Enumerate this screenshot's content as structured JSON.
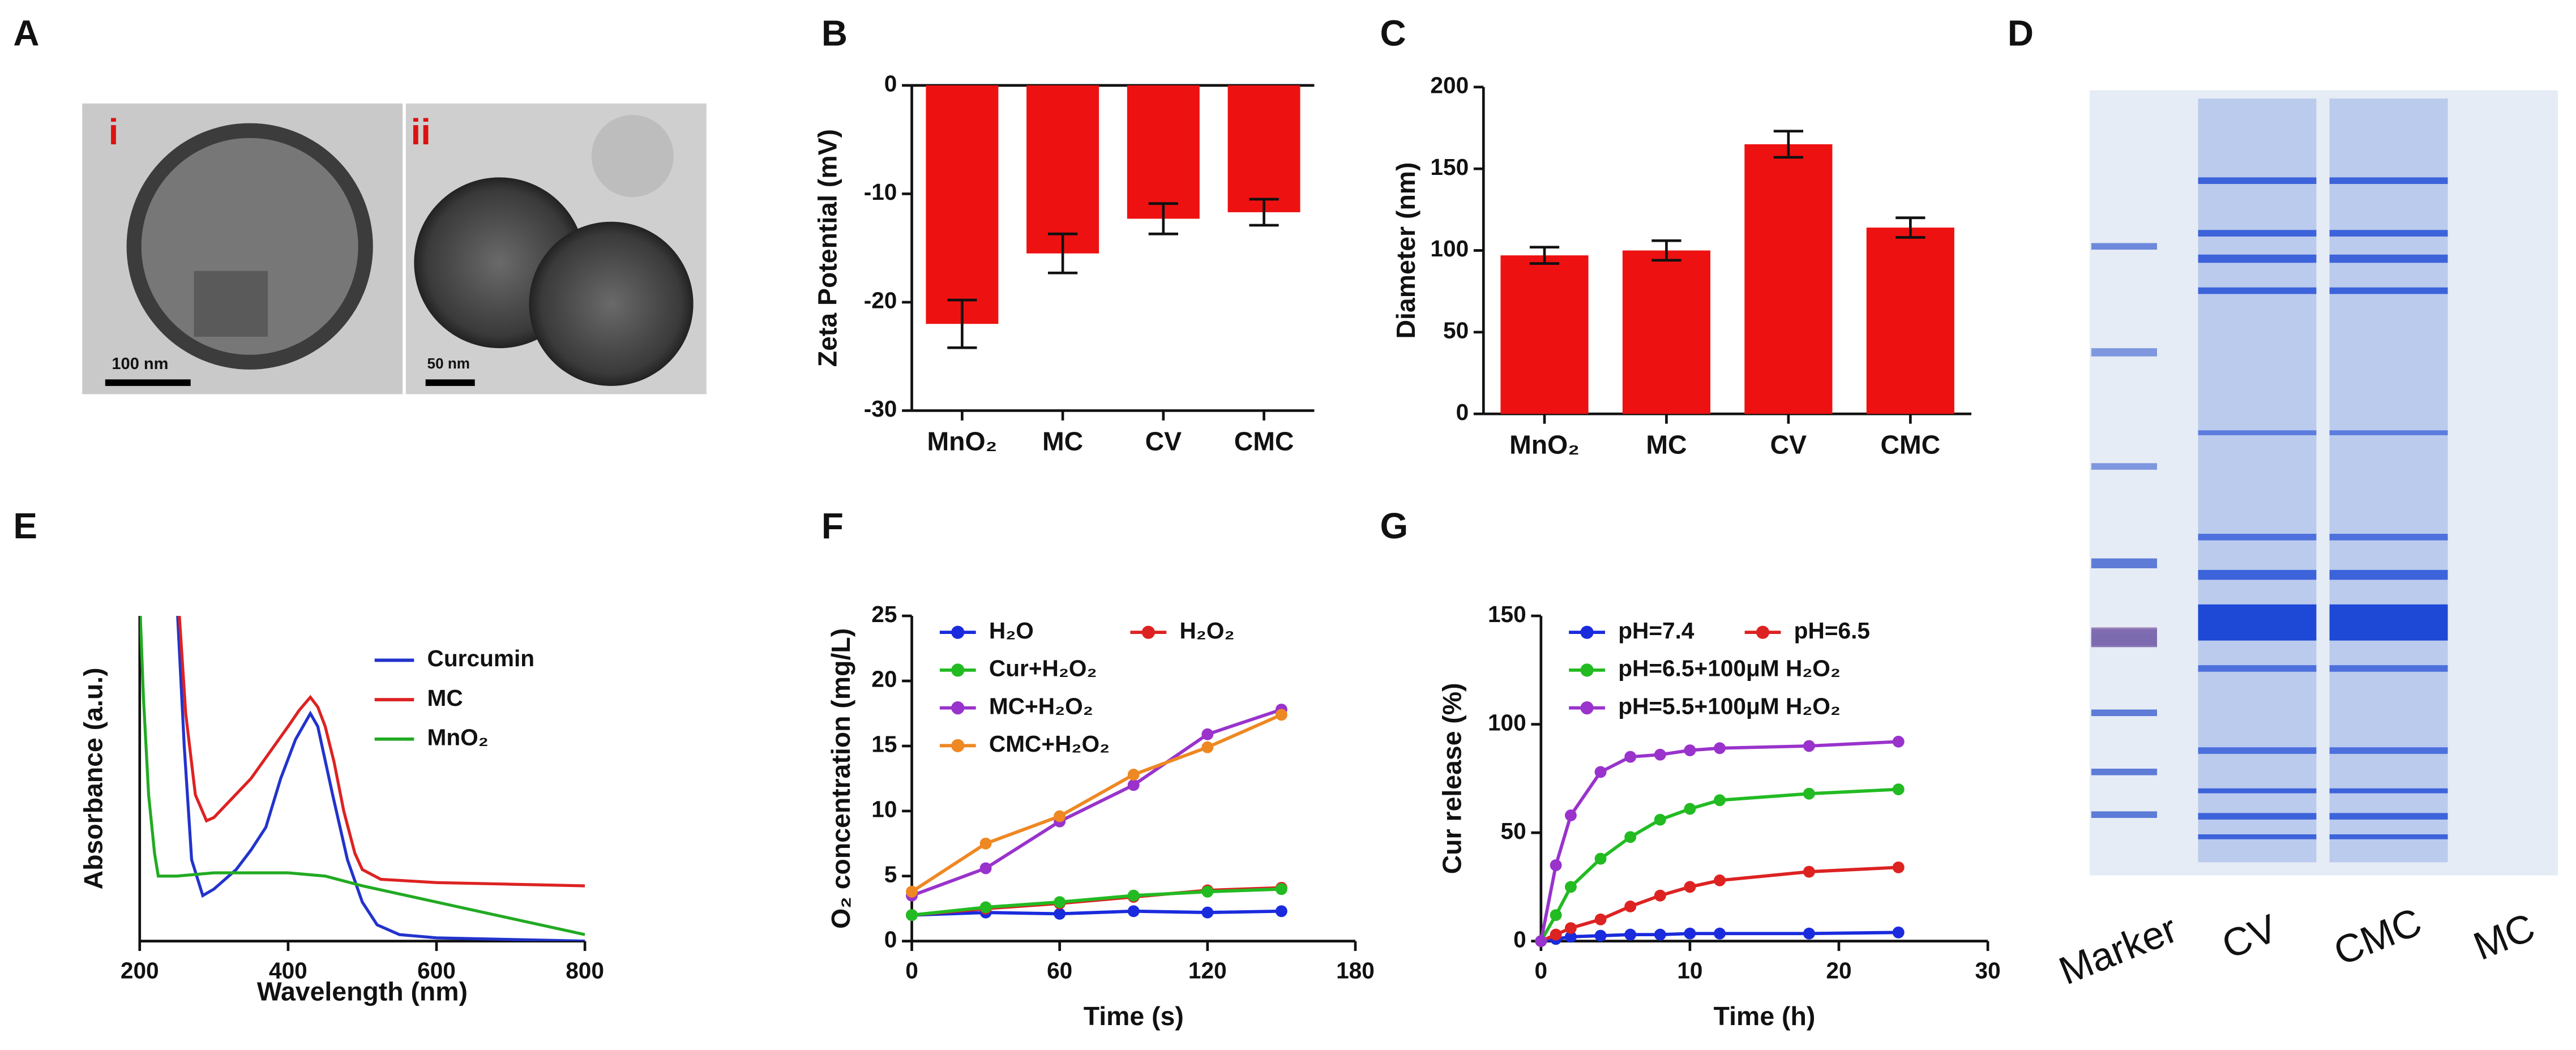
{
  "panel_a": {
    "panel": "A",
    "insets": [
      "i",
      "ii"
    ],
    "scale_bars": [
      "100 nm",
      "50 nm"
    ]
  },
  "gel": {
    "panel": "D",
    "lanes": [
      "Marker",
      "CV",
      "CMC",
      "MC"
    ]
  },
  "chart_data": [
    {
      "type": "bar",
      "panel": "B",
      "ylabel": "Zeta Potential (mV)",
      "categories": [
        "MnO₂",
        "MC",
        "CV",
        "CMC"
      ],
      "values": [
        -22,
        -15.5,
        -12.3,
        -11.7
      ],
      "errors": [
        2.2,
        1.8,
        1.4,
        1.2
      ],
      "color": "#ee1111",
      "ylim": [
        -30,
        0
      ],
      "yticks": [
        -30,
        -20,
        -10,
        0
      ]
    },
    {
      "type": "bar",
      "panel": "C",
      "ylabel": "Diameter (nm)",
      "categories": [
        "MnO₂",
        "MC",
        "CV",
        "CMC"
      ],
      "values": [
        97,
        100,
        165,
        114
      ],
      "errors": [
        5,
        6,
        8,
        6
      ],
      "color": "#ee1111",
      "ylim": [
        0,
        200
      ],
      "yticks": [
        0,
        50,
        100,
        150,
        200
      ]
    },
    {
      "type": "line",
      "panel": "E",
      "xlabel": "Wavelength (nm)",
      "ylabel": "Absorbance (a.u.)",
      "xlim": [
        200,
        800
      ],
      "xticks": [
        200,
        400,
        600,
        800
      ],
      "ylim": [
        0,
        1
      ],
      "markers": false,
      "series": [
        {
          "name": "Curcumin",
          "color": "#2233cc",
          "x": [
            250,
            260,
            270,
            285,
            300,
            330,
            350,
            370,
            390,
            410,
            430,
            440,
            460,
            480,
            500,
            520,
            550,
            600,
            700,
            800
          ],
          "values": [
            1.05,
            0.6,
            0.25,
            0.14,
            0.16,
            0.22,
            0.28,
            0.35,
            0.5,
            0.62,
            0.7,
            0.66,
            0.45,
            0.25,
            0.12,
            0.05,
            0.02,
            0.01,
            0.005,
            0
          ]
        },
        {
          "name": "MC",
          "color": "#dd2222",
          "x": [
            252,
            262,
            275,
            290,
            300,
            325,
            350,
            375,
            400,
            415,
            430,
            440,
            450,
            462,
            475,
            490,
            500,
            525,
            600,
            700,
            800
          ],
          "values": [
            1.05,
            0.7,
            0.45,
            0.37,
            0.38,
            0.44,
            0.5,
            0.58,
            0.66,
            0.71,
            0.75,
            0.72,
            0.66,
            0.55,
            0.4,
            0.27,
            0.22,
            0.19,
            0.18,
            0.175,
            0.17
          ]
        },
        {
          "name": "MnO₂",
          "color": "#22aa22",
          "x": [
            200,
            205,
            212,
            220,
            225,
            250,
            300,
            400,
            450,
            500,
            600,
            700,
            800
          ],
          "values": [
            1.05,
            0.75,
            0.45,
            0.27,
            0.2,
            0.2,
            0.21,
            0.21,
            0.2,
            0.17,
            0.12,
            0.07,
            0.02
          ]
        }
      ]
    },
    {
      "type": "line",
      "panel": "F",
      "xlabel": "Time (s)",
      "ylabel": "O₂ concentration (mg/L)",
      "x": [
        0,
        30,
        60,
        90,
        120,
        150
      ],
      "xlim": [
        0,
        180
      ],
      "xticks": [
        0,
        60,
        120,
        180
      ],
      "ylim": [
        0,
        25
      ],
      "yticks": [
        0,
        5,
        10,
        15,
        20,
        25
      ],
      "markers": true,
      "series": [
        {
          "name": "H₂O",
          "color": "#1a2bdd",
          "values": [
            2.0,
            2.2,
            2.1,
            2.3,
            2.2,
            2.3
          ]
        },
        {
          "name": "H₂O₂",
          "color": "#dd2222",
          "values": [
            2.0,
            2.5,
            2.9,
            3.4,
            3.9,
            4.1
          ]
        },
        {
          "name": "Cur+H₂O₂",
          "color": "#22bb22",
          "values": [
            2.0,
            2.6,
            3.0,
            3.5,
            3.8,
            4.0
          ]
        },
        {
          "name": "MC+H₂O₂",
          "color": "#9933cc",
          "values": [
            3.5,
            5.6,
            9.2,
            12.0,
            15.9,
            17.8
          ]
        },
        {
          "name": "CMC+H₂O₂",
          "color": "#ee8822",
          "values": [
            3.8,
            7.5,
            9.6,
            12.8,
            14.9,
            17.4
          ]
        }
      ]
    },
    {
      "type": "line",
      "panel": "G",
      "xlabel": "Time (h)",
      "ylabel": "Cur release (%)",
      "x": [
        0,
        1,
        2,
        4,
        6,
        8,
        10,
        12,
        18,
        24
      ],
      "xlim": [
        0,
        30
      ],
      "xticks": [
        0,
        10,
        20,
        30
      ],
      "ylim": [
        0,
        150
      ],
      "yticks": [
        0,
        50,
        100,
        150
      ],
      "markers": true,
      "series": [
        {
          "name": "pH=7.4",
          "color": "#1a2bdd",
          "values": [
            0,
            1,
            2,
            2.5,
            3,
            3,
            3.5,
            3.5,
            3.5,
            4
          ]
        },
        {
          "name": "pH=6.5",
          "color": "#dd2222",
          "values": [
            0,
            3,
            6,
            10,
            16,
            21,
            25,
            28,
            32,
            34
          ]
        },
        {
          "name": "pH=6.5+100μM H₂O₂",
          "color": "#22bb22",
          "values": [
            0,
            12,
            25,
            38,
            48,
            56,
            61,
            65,
            68,
            70
          ]
        },
        {
          "name": "pH=5.5+100μM H₂O₂",
          "color": "#9933cc",
          "values": [
            0,
            35,
            58,
            78,
            85,
            86,
            88,
            89,
            90,
            92
          ]
        }
      ]
    }
  ]
}
